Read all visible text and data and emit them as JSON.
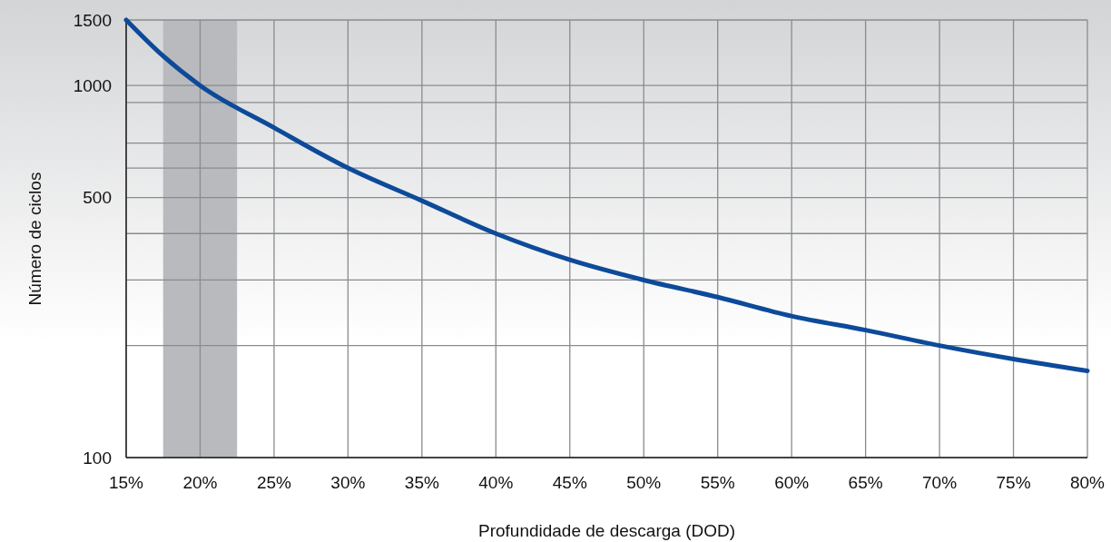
{
  "chart_data": {
    "type": "line",
    "xlabel": "Profundidade de descarga (DOD)",
    "ylabel": "Número de ciclos",
    "log": "y",
    "grid": true,
    "x": [
      15,
      17.5,
      20,
      25,
      30,
      35,
      40,
      45,
      50,
      55,
      60,
      65,
      70,
      75,
      80
    ],
    "series": [
      {
        "color": "#0d4a9a",
        "values": [
          1500,
          1200,
          1000,
          770,
          600,
          490,
          400,
          340,
          300,
          270,
          240,
          220,
          200,
          184,
          171
        ]
      }
    ],
    "xlim": [
      15,
      80
    ],
    "xticks": [
      {
        "value": 15,
        "label": "15%"
      },
      {
        "value": 20,
        "label": "20%"
      },
      {
        "value": 25,
        "label": "25%"
      },
      {
        "value": 30,
        "label": "30%"
      },
      {
        "value": 35,
        "label": "35%"
      },
      {
        "value": 40,
        "label": "40%"
      },
      {
        "value": 45,
        "label": "45%"
      },
      {
        "value": 50,
        "label": "50%"
      },
      {
        "value": 55,
        "label": "55%"
      },
      {
        "value": 60,
        "label": "60%"
      },
      {
        "value": 65,
        "label": "65%"
      },
      {
        "value": 70,
        "label": "70%"
      },
      {
        "value": 75,
        "label": "75%"
      },
      {
        "value": 80,
        "label": "80%"
      }
    ],
    "ylim": [
      100,
      1500
    ],
    "yticks": [
      100,
      {
        "value": 200,
        "label": null
      },
      {
        "value": 300,
        "label": null
      },
      {
        "value": 400,
        "label": null
      },
      500,
      {
        "value": 600,
        "label": null
      },
      {
        "value": 700,
        "label": null
      },
      {
        "value": 900,
        "label": null
      },
      1000,
      1500
    ],
    "bands": [
      {
        "axis": "x",
        "from": 17.5,
        "to": 22.5,
        "color": "#b9babe"
      }
    ]
  }
}
